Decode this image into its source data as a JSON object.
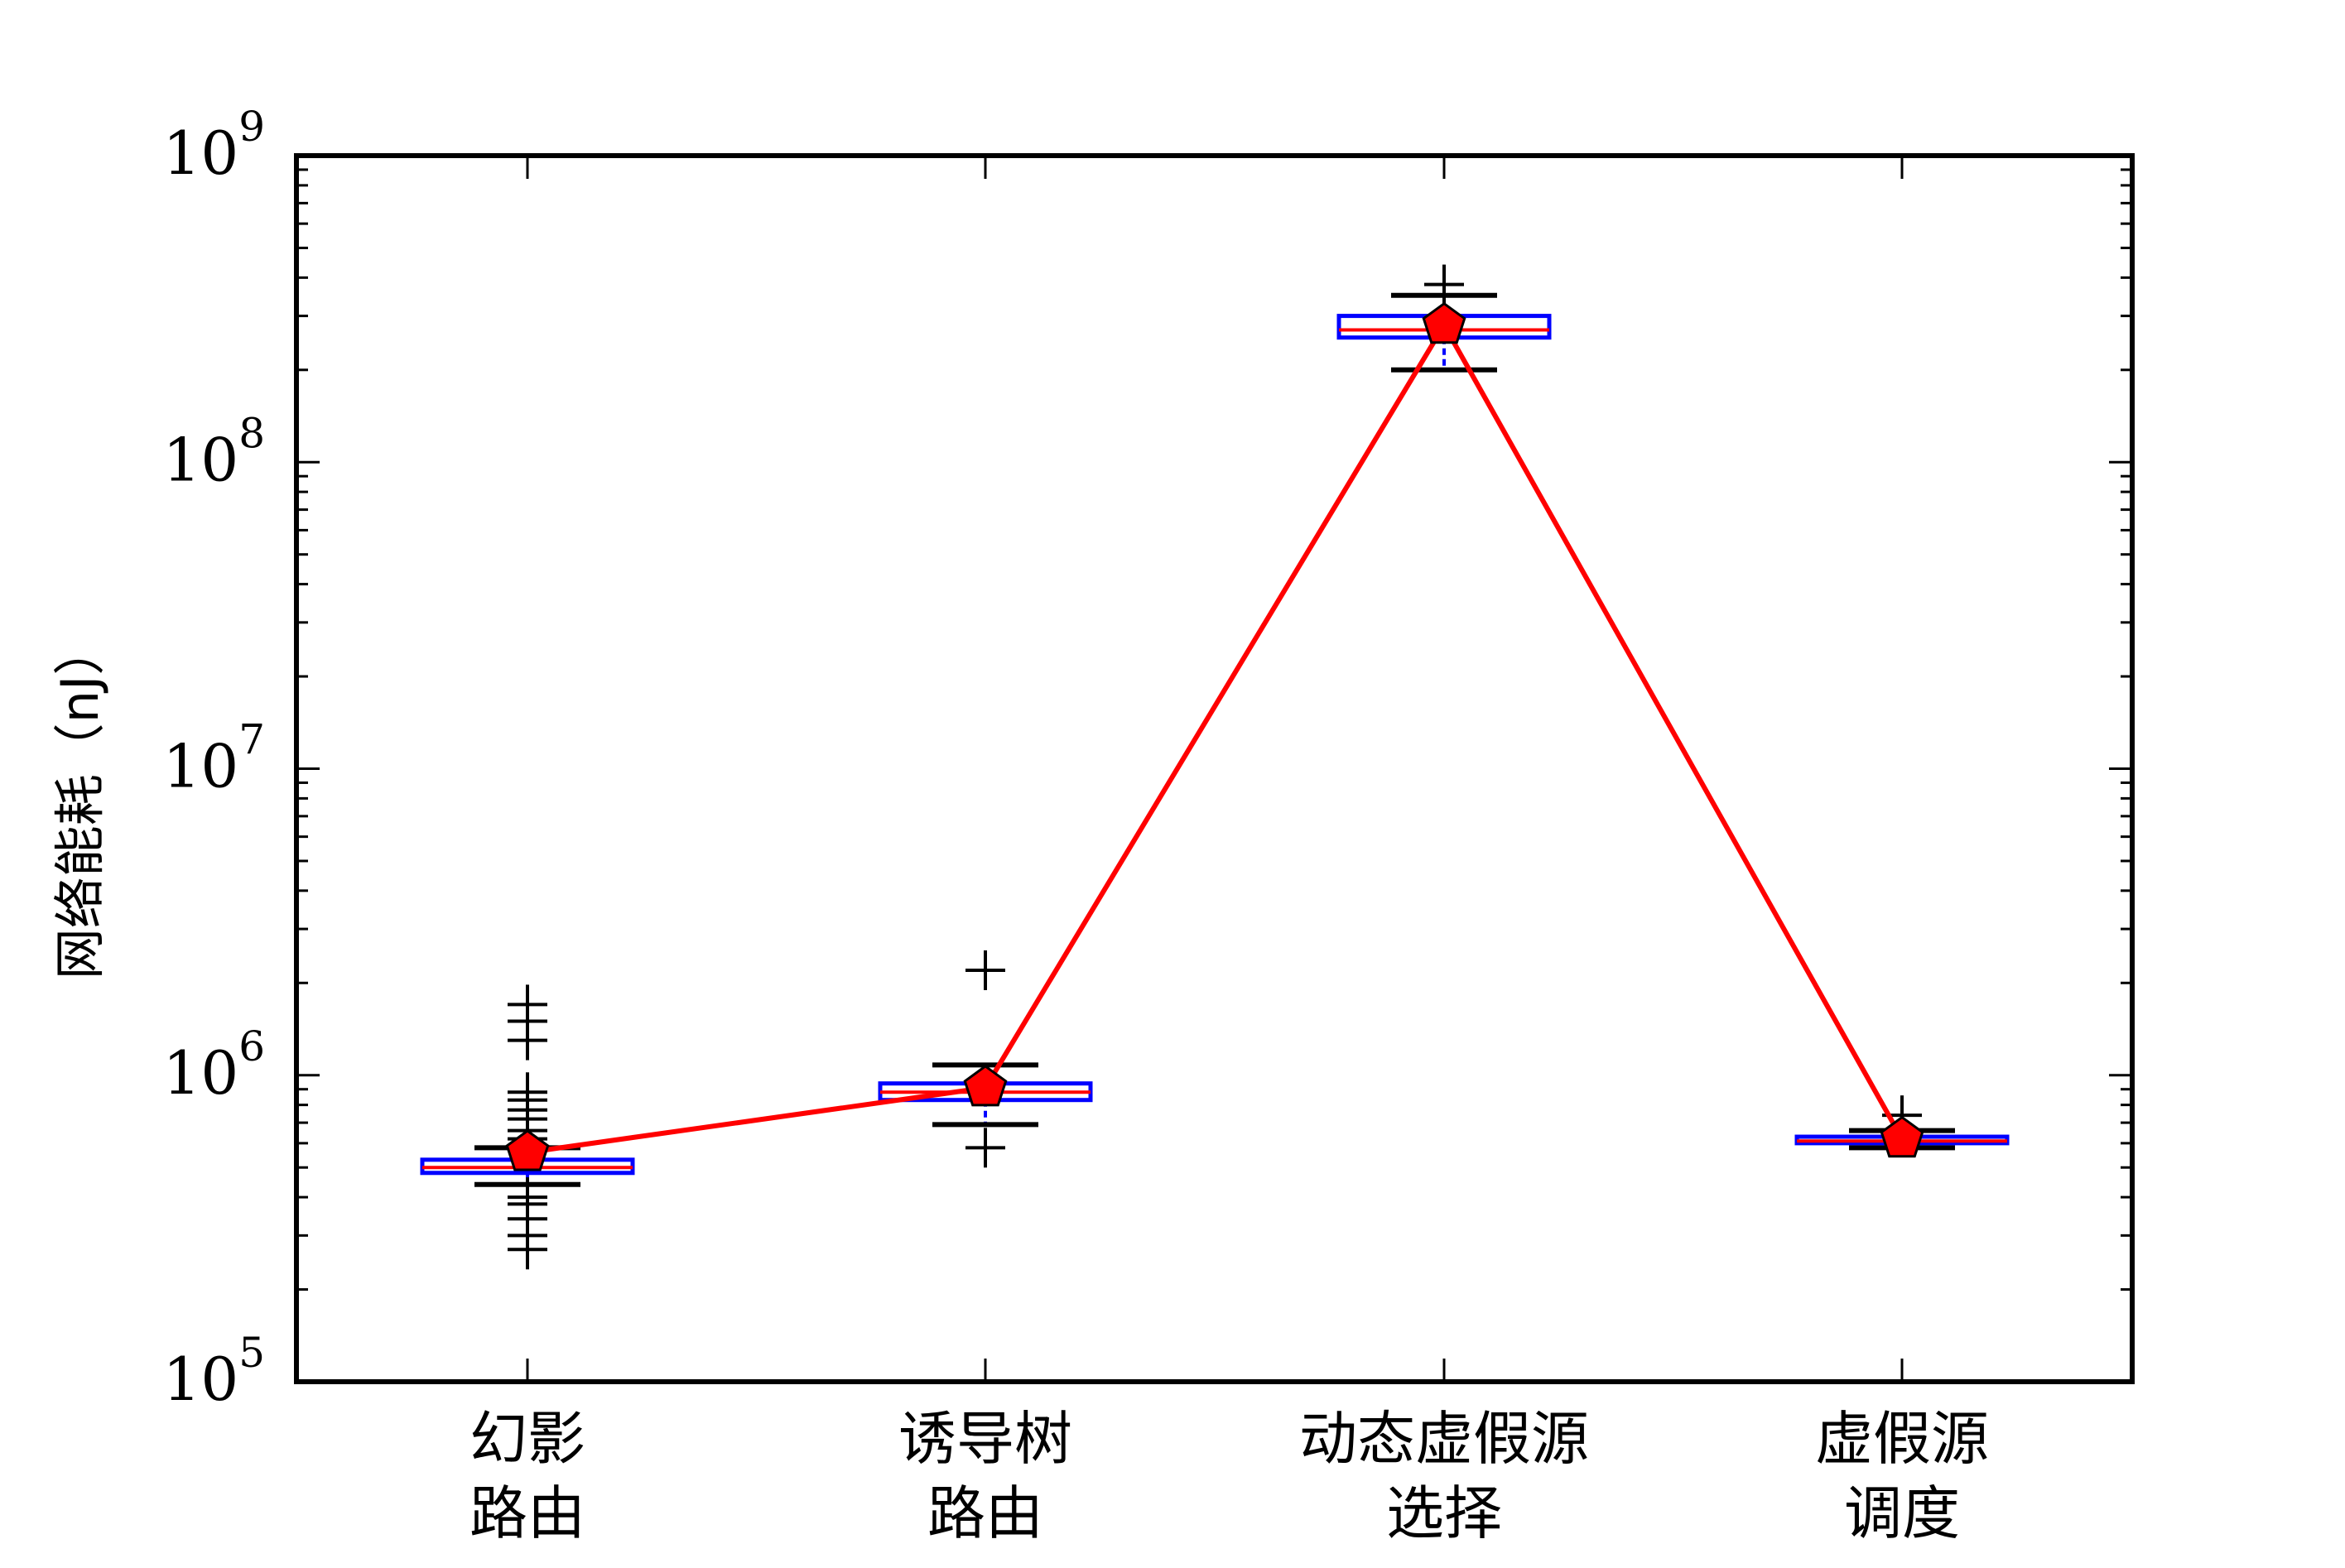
{
  "chart_data": {
    "type": "box",
    "title": "",
    "xlabel": "",
    "ylabel": "网络能耗（nJ）",
    "yscale": "log",
    "ylim": [
      100000,
      1000000000
    ],
    "y_tick_labels": [
      {
        "base": "10",
        "exp": "5"
      },
      {
        "base": "10",
        "exp": "6"
      },
      {
        "base": "10",
        "exp": "7"
      },
      {
        "base": "10",
        "exp": "8"
      },
      {
        "base": "10",
        "exp": "9"
      }
    ],
    "categories": [
      {
        "line1": "幻影",
        "line2": "路由"
      },
      {
        "line1": "诱导树",
        "line2": "路由"
      },
      {
        "line1": "动态虚假源",
        "line2": "选择"
      },
      {
        "line1": "虚假源",
        "line2": "调度"
      }
    ],
    "boxes": [
      {
        "whisker_low": 440000,
        "q1": 480000,
        "median": 500000,
        "q3": 530000,
        "whisker_high": 580000,
        "outliers": [
          270000,
          300000,
          340000,
          380000,
          400000,
          620000,
          660000,
          720000,
          770000,
          830000,
          880000,
          1300000,
          1500000,
          1700000
        ]
      },
      {
        "whisker_low": 690000,
        "q1": 830000,
        "median": 880000,
        "q3": 940000,
        "whisker_high": 1080000,
        "outliers": [
          580000,
          2200000
        ]
      },
      {
        "whisker_low": 200000000,
        "q1": 255000000,
        "median": 270000000,
        "q3": 300000000,
        "whisker_high": 350000000,
        "outliers": [
          380000000
        ]
      },
      {
        "whisker_low": 580000,
        "q1": 600000,
        "median": 610000,
        "q3": 630000,
        "whisker_high": 660000,
        "outliers": [
          740000
        ]
      }
    ],
    "mean_line": {
      "values": [
        560000,
        910000,
        280000000,
        620000
      ]
    },
    "colors": {
      "box": "#0000ff",
      "median": "#ff0000",
      "whisker": "#000000",
      "outlier": "#000000",
      "mean_line": "#ff0000",
      "mean_marker_fill": "#ff0000",
      "mean_marker_edge": "#000000"
    }
  }
}
